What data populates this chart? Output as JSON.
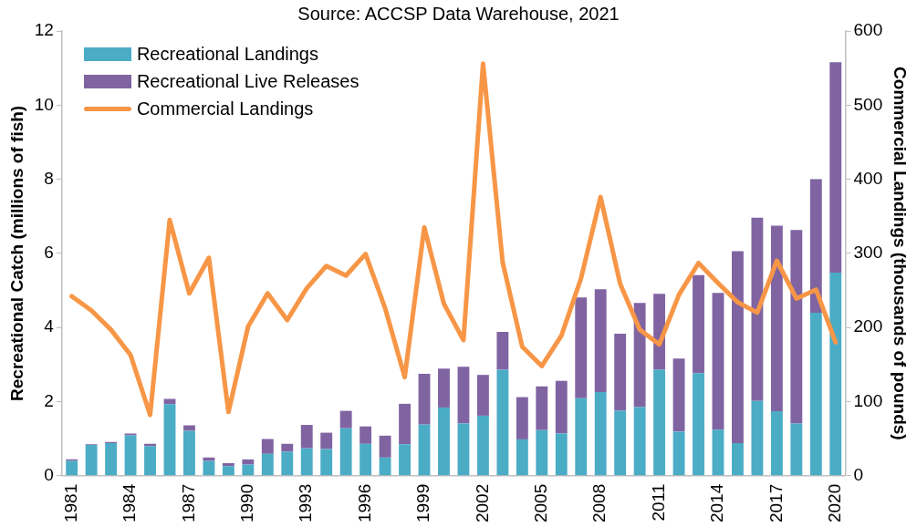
{
  "chart_data": {
    "type": "bar",
    "title": "Source: ACCSP Data Warehouse, 2021",
    "categories": [
      "1981",
      null,
      null,
      "1984",
      null,
      null,
      "1987",
      null,
      null,
      "1990",
      null,
      null,
      "1993",
      null,
      null,
      "1996",
      null,
      null,
      "1999",
      null,
      null,
      "2002",
      null,
      null,
      "2005",
      null,
      null,
      "2008",
      null,
      null,
      "2011",
      null,
      null,
      "2014",
      null,
      null,
      "2017",
      null,
      null,
      "2020"
    ],
    "stacked": true,
    "series": [
      {
        "name": "Recreational Landings",
        "type": "bar",
        "color": "#4bacc6",
        "values": [
          0.4,
          0.83,
          0.88,
          1.09,
          0.8,
          1.93,
          1.21,
          0.4,
          0.26,
          0.3,
          0.59,
          0.65,
          0.74,
          0.72,
          1.28,
          0.86,
          0.49,
          0.85,
          1.38,
          1.84,
          1.41,
          1.62,
          2.86,
          0.98,
          1.23,
          1.14,
          2.09,
          2.26,
          1.75,
          1.85,
          2.86,
          1.19,
          2.77,
          1.24,
          0.88,
          2.02,
          1.74,
          1.41,
          4.4,
          5.48
        ]
      },
      {
        "name": "Recreational Live Releases",
        "type": "bar",
        "color": "#8064a2",
        "values": [
          0.04,
          0.02,
          0.03,
          0.05,
          0.06,
          0.14,
          0.15,
          0.09,
          0.08,
          0.14,
          0.4,
          0.21,
          0.63,
          0.44,
          0.47,
          0.47,
          0.59,
          1.09,
          1.37,
          1.05,
          1.53,
          1.1,
          1.02,
          1.14,
          1.18,
          1.42,
          2.72,
          2.77,
          2.08,
          2.81,
          2.05,
          1.97,
          2.64,
          3.69,
          5.18,
          4.94,
          5.01,
          5.22,
          3.6,
          5.68
        ]
      },
      {
        "name": "Commercial Landings",
        "type": "line",
        "axis": "y2",
        "color": "#f79646",
        "values": [
          242,
          223,
          197,
          163,
          82,
          345,
          246,
          294,
          86,
          201,
          246,
          210,
          253,
          283,
          270,
          299,
          226,
          133,
          335,
          232,
          183,
          556,
          288,
          174,
          148,
          189,
          266,
          376,
          259,
          197,
          177,
          244,
          287,
          260,
          234,
          220,
          290,
          239,
          251,
          180
        ]
      }
    ],
    "ylabel": "Recreational Catch (millions of fish)",
    "y2label": "Commercial Landings (thousands of pounds)",
    "ylim": [
      0,
      12
    ],
    "yticks": [
      0,
      2,
      4,
      6,
      8,
      10,
      12
    ],
    "y2lim": [
      0,
      600
    ],
    "y2ticks": [
      0,
      100,
      200,
      300,
      400,
      500,
      600
    ],
    "grid": false,
    "legend": "top left",
    "marker": "none",
    "line_style": "solid"
  }
}
